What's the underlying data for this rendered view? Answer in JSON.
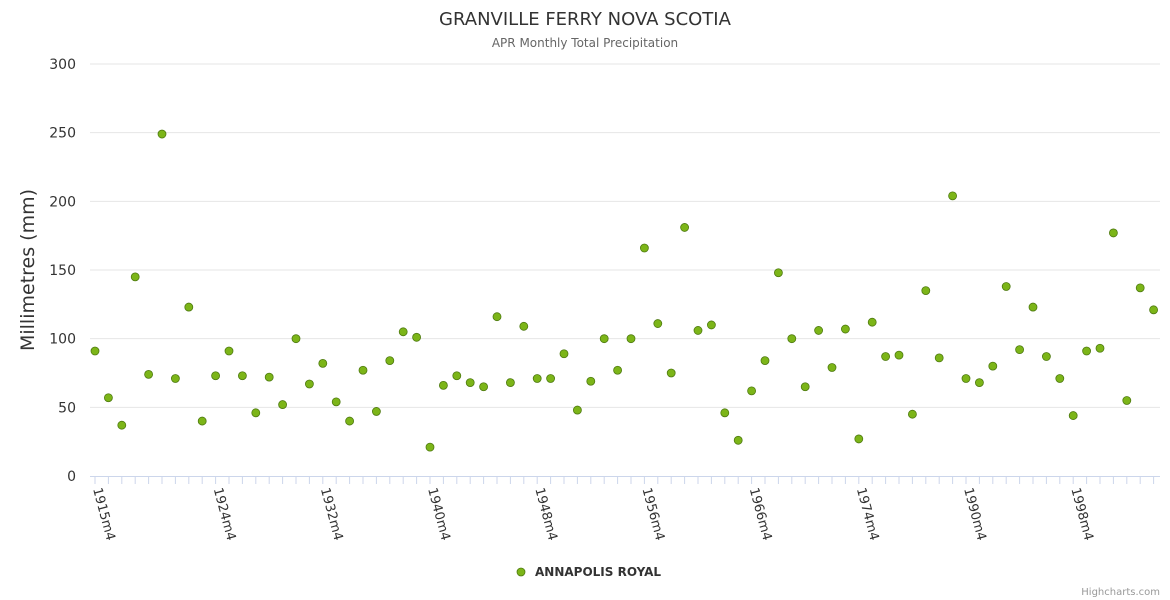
{
  "chart_data": {
    "type": "scatter",
    "title": "GRANVILLE FERRY NOVA SCOTIA",
    "subtitle": "APR Monthly Total Precipitation",
    "ylabel": "Millimetres (mm)",
    "xlabel": "",
    "ylim": [
      0,
      300
    ],
    "yticks": [
      "0",
      "50",
      "100",
      "150",
      "200",
      "250",
      "300"
    ],
    "xticks": [
      {
        "label": "1915m4",
        "index": 0
      },
      {
        "label": "1924m4",
        "index": 9
      },
      {
        "label": "1932m4",
        "index": 17
      },
      {
        "label": "1940m4",
        "index": 25
      },
      {
        "label": "1948m4",
        "index": 33
      },
      {
        "label": "1956m4",
        "index": 41
      },
      {
        "label": "1966m4",
        "index": 49
      },
      {
        "label": "1974m4",
        "index": 57
      },
      {
        "label": "1990m4",
        "index": 65
      },
      {
        "label": "1998m4",
        "index": 73
      }
    ],
    "grid": true,
    "legend_position": "bottom-center",
    "series": [
      {
        "name": "ANNAPOLIS ROYAL",
        "color": "#7cb518",
        "values": [
          91,
          57,
          37,
          145,
          74,
          249,
          71,
          123,
          40,
          73,
          91,
          73,
          46,
          72,
          52,
          100,
          67,
          82,
          54,
          40,
          77,
          47,
          84,
          105,
          101,
          21,
          66,
          73,
          68,
          65,
          116,
          68,
          109,
          71,
          71,
          89,
          48,
          69,
          100,
          77,
          100,
          166,
          111,
          75,
          181,
          106,
          110,
          46,
          26,
          62,
          84,
          148,
          100,
          65,
          106,
          79,
          107,
          27,
          112,
          87,
          88,
          45,
          135,
          86,
          204,
          71,
          68,
          80,
          138,
          92,
          123,
          87,
          71,
          44,
          91,
          93,
          177,
          55,
          137,
          121
        ]
      }
    ]
  },
  "credits": "Highcharts.com"
}
